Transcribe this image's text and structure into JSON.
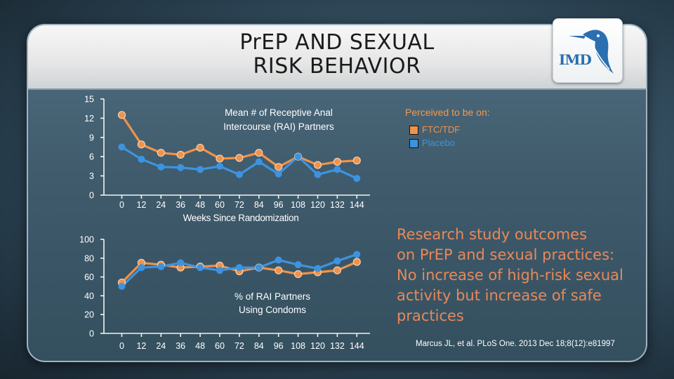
{
  "slide": {
    "title_line1": "PrEP AND SEXUAL",
    "title_line2": "RISK BEHAVIOR",
    "logo_text": "IMD",
    "summary_lines": [
      "Research study outcomes",
      "on PrEP and sexual practices:",
      "No increase of high-risk sexual",
      "activity but increase of safe",
      "practices"
    ],
    "citation": "Marcus JL, et al. PLoS One. 2013 Dec 18;8(12):e81997"
  },
  "legend": {
    "title": "Perceived to be on:",
    "items": [
      {
        "label": "FTC/TDF",
        "color": "#f0924a"
      },
      {
        "label": "Placebo",
        "color": "#3d93e0"
      }
    ]
  },
  "colors": {
    "ftc": "#f0924a",
    "placebo": "#3d93e0",
    "summary": "#e9885a"
  },
  "chart_data": [
    {
      "type": "line",
      "title": "Mean # of Receptive Anal Intercourse (RAI) Partners",
      "title_lines": [
        "Mean # of Receptive Anal",
        "Intercourse (RAI) Partners"
      ],
      "xlabel": "Weeks Since Randomization",
      "ylabel": "",
      "x": [
        0,
        12,
        24,
        36,
        48,
        60,
        72,
        84,
        96,
        108,
        120,
        132,
        144
      ],
      "x_tick_labels": [
        "0",
        "12",
        "24",
        "36",
        "48",
        "60",
        "72",
        "84",
        "96",
        "108",
        "120",
        "132",
        "144"
      ],
      "ylim": [
        0,
        15
      ],
      "y_ticks": [
        0,
        3,
        6,
        9,
        12,
        15
      ],
      "series": [
        {
          "name": "FTC/TDF",
          "values": [
            12.5,
            7.9,
            6.6,
            6.3,
            7.4,
            5.7,
            5.8,
            6.6,
            4.4,
            6.0,
            4.7,
            5.2,
            5.4
          ]
        },
        {
          "name": "Placebo",
          "values": [
            7.5,
            5.6,
            4.4,
            4.3,
            4.0,
            4.5,
            3.2,
            5.2,
            3.3,
            6.0,
            3.2,
            4.0,
            2.6
          ]
        }
      ]
    },
    {
      "type": "line",
      "title": "% of RAI Partners Using Condoms",
      "title_lines": [
        "% of RAI Partners",
        "Using Condoms"
      ],
      "xlabel": "",
      "ylabel": "",
      "x": [
        0,
        12,
        24,
        36,
        48,
        60,
        72,
        84,
        96,
        108,
        120,
        132,
        144
      ],
      "x_tick_labels": [
        "0",
        "12",
        "24",
        "36",
        "48",
        "60",
        "72",
        "84",
        "96",
        "108",
        "120",
        "132",
        "144"
      ],
      "ylim": [
        0,
        100
      ],
      "y_ticks": [
        0,
        20,
        40,
        60,
        80,
        100
      ],
      "series": [
        {
          "name": "FTC/TDF",
          "values": [
            54,
            75,
            73,
            70,
            71,
            72,
            66,
            70,
            67,
            63,
            65,
            67,
            76
          ]
        },
        {
          "name": "Placebo",
          "values": [
            50,
            70,
            71,
            75,
            70,
            67,
            70,
            70,
            78,
            73,
            69,
            77,
            84
          ]
        }
      ]
    }
  ]
}
